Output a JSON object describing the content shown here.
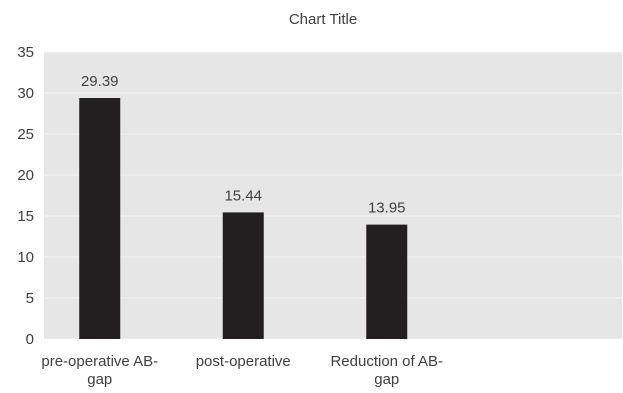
{
  "chart_data": {
    "type": "bar",
    "title": "Chart Title",
    "categories": [
      [
        "pre-operative AB-",
        "gap"
      ],
      [
        "post-operative"
      ],
      [
        "Reduction of AB-",
        "gap"
      ]
    ],
    "values": [
      29.39,
      15.44,
      13.95
    ],
    "data_labels": [
      "29.39",
      "15.44",
      "13.95"
    ],
    "ylim": [
      0,
      35
    ],
    "y_ticks": [
      "0",
      "5",
      "10",
      "15",
      "20",
      "25",
      "30",
      "35"
    ],
    "grid": true,
    "legend": "none",
    "colors": {
      "bar": "#231f20",
      "plot_background": "#e6e6e6",
      "gridline": "#f7f7f7",
      "text": "#404040"
    }
  }
}
